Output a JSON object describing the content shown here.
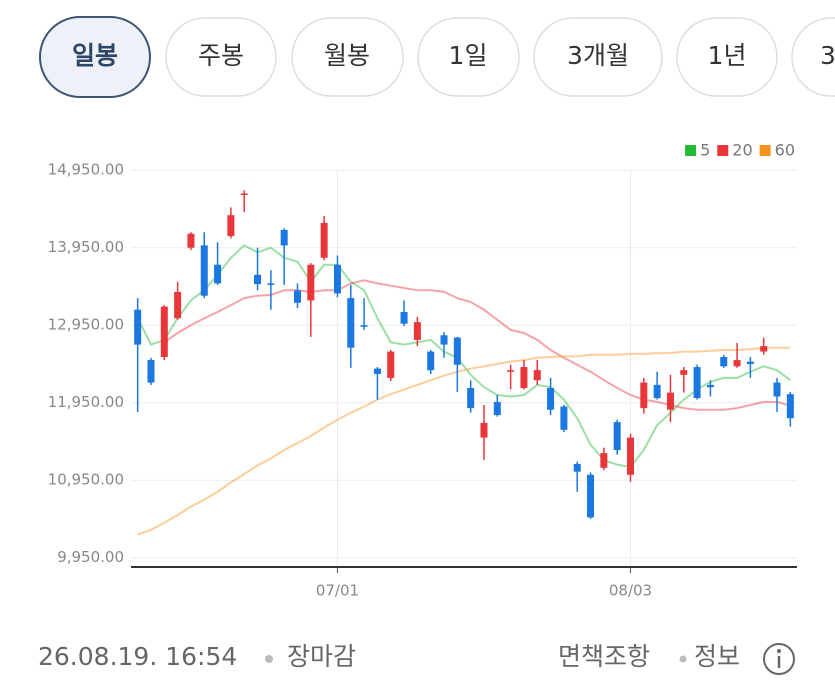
{
  "tabs": [
    "일봉",
    "주봉",
    "월봉",
    "1일",
    "3개월",
    "1년",
    "3"
  ],
  "chart_data": {
    "type": "candlestick",
    "categories": [
      null,
      null,
      null,
      null,
      null,
      null,
      null,
      null,
      null,
      null,
      null,
      null,
      null,
      null,
      null,
      "07/01",
      null,
      null,
      null,
      null,
      null,
      null,
      null,
      null,
      null,
      null,
      null,
      null,
      null,
      null,
      null,
      null,
      null,
      null,
      null,
      null,
      null,
      "08/03",
      null,
      null,
      null,
      null,
      null,
      null,
      null,
      null,
      null,
      null,
      null,
      null
    ],
    "open": [
      13150,
      12500,
      12540,
      13040,
      13950,
      13980,
      13730,
      14100,
      14630,
      13600,
      13490,
      14180,
      13400,
      13270,
      13820,
      13730,
      13300,
      12950,
      12390,
      12270,
      13120,
      12760,
      12610,
      12820,
      12790,
      12140,
      11500,
      11960,
      12350,
      12140,
      12240,
      12140,
      11900,
      11160,
      11020,
      11110,
      11700,
      11020,
      11880,
      12180,
      11860,
      12310,
      12410,
      12180,
      12540,
      12420,
      12480,
      12610,
      12210,
      12060
    ],
    "high": [
      13300,
      12530,
      13210,
      13510,
      14150,
      14150,
      14020,
      14470,
      14690,
      13950,
      13660,
      14200,
      13490,
      13750,
      14360,
      13850,
      13470,
      13300,
      12410,
      12630,
      13270,
      13060,
      12630,
      12860,
      12800,
      12240,
      11920,
      12050,
      12440,
      12500,
      12500,
      12270,
      11920,
      11190,
      11050,
      11370,
      11730,
      11550,
      12270,
      12350,
      12310,
      12410,
      12440,
      12240,
      12570,
      12720,
      12540,
      12790,
      12270,
      12090
    ],
    "low": [
      11830,
      12180,
      12500,
      13020,
      13920,
      13300,
      13470,
      14070,
      14410,
      13400,
      13150,
      13470,
      13170,
      12800,
      13790,
      13310,
      12400,
      12890,
      11990,
      12230,
      12940,
      12680,
      12320,
      12530,
      12090,
      11820,
      11210,
      11770,
      12120,
      12120,
      12180,
      11790,
      11570,
      10800,
      10450,
      11080,
      11280,
      10930,
      11810,
      11990,
      11700,
      12080,
      11990,
      12030,
      12400,
      12400,
      12270,
      12570,
      11830,
      11640
    ],
    "close": [
      12700,
      12210,
      13190,
      13380,
      14130,
      13330,
      13490,
      14370,
      14650,
      13480,
      13470,
      13980,
      13240,
      13730,
      14270,
      13360,
      12660,
      12930,
      12320,
      12610,
      12970,
      12990,
      12370,
      12700,
      12440,
      11880,
      11690,
      11790,
      12370,
      12410,
      12370,
      11860,
      11600,
      11060,
      10470,
      11300,
      11340,
      11500,
      12210,
      12010,
      12080,
      12370,
      12010,
      12150,
      12420,
      12500,
      12450,
      12680,
      12030,
      11750
    ],
    "up_color": "#e8363a",
    "down_color": "#1a78e0",
    "series": [
      {
        "name": "5",
        "color": "#22bb33",
        "values": [
          13040,
          12700,
          12760,
          13040,
          13270,
          13400,
          13600,
          13820,
          13980,
          13890,
          13950,
          13820,
          13770,
          13510,
          13730,
          13730,
          13510,
          13400,
          13040,
          12730,
          12700,
          12730,
          12760,
          12610,
          12530,
          12310,
          12150,
          12050,
          12030,
          12050,
          12180,
          12150,
          11990,
          11750,
          11410,
          11210,
          11150,
          11120,
          11340,
          11660,
          11820,
          11990,
          12120,
          12220,
          12270,
          12270,
          12350,
          12420,
          12370,
          12240
        ]
      },
      {
        "name": "20",
        "color": "#e8363a",
        "values": [
          null,
          null,
          12730,
          12850,
          12950,
          13040,
          13120,
          13210,
          13300,
          13330,
          13340,
          13400,
          13400,
          13380,
          13400,
          13400,
          13490,
          13530,
          13490,
          13460,
          13430,
          13400,
          13400,
          13380,
          13300,
          13250,
          13150,
          13020,
          12890,
          12850,
          12760,
          12630,
          12530,
          12440,
          12350,
          12240,
          12140,
          12050,
          11990,
          11960,
          11920,
          11880,
          11860,
          11860,
          11860,
          11880,
          11920,
          11960,
          11960,
          11910
        ]
      },
      {
        "name": "60",
        "color": "#f7931e",
        "values": [
          10250,
          10310,
          10400,
          10500,
          10610,
          10700,
          10800,
          10920,
          11030,
          11140,
          11230,
          11340,
          11430,
          11520,
          11630,
          11730,
          11820,
          11900,
          11990,
          12060,
          12120,
          12180,
          12240,
          12300,
          12350,
          12390,
          12420,
          12450,
          12480,
          12500,
          12530,
          12540,
          12550,
          12550,
          12570,
          12570,
          12570,
          12580,
          12580,
          12590,
          12590,
          12610,
          12610,
          12620,
          12630,
          12630,
          12640,
          12660,
          12660,
          12660
        ]
      }
    ],
    "ylim": [
      9830,
      15340
    ],
    "yticks": [
      {
        "value": 9950,
        "label": "9,950.00"
      },
      {
        "value": 10950,
        "label": "10,950.00"
      },
      {
        "value": 11950,
        "label": "11,950.00"
      },
      {
        "value": 12950,
        "label": "12,950.00"
      },
      {
        "value": 13950,
        "label": "13,950.00"
      },
      {
        "value": 14950,
        "label": "14,950.00"
      }
    ],
    "grid": true,
    "legend": "top-right"
  },
  "footer": {
    "timestamp": "26.08.19. 16:54",
    "status": "장마감",
    "disclaimer": "면책조항",
    "info": "정보"
  }
}
